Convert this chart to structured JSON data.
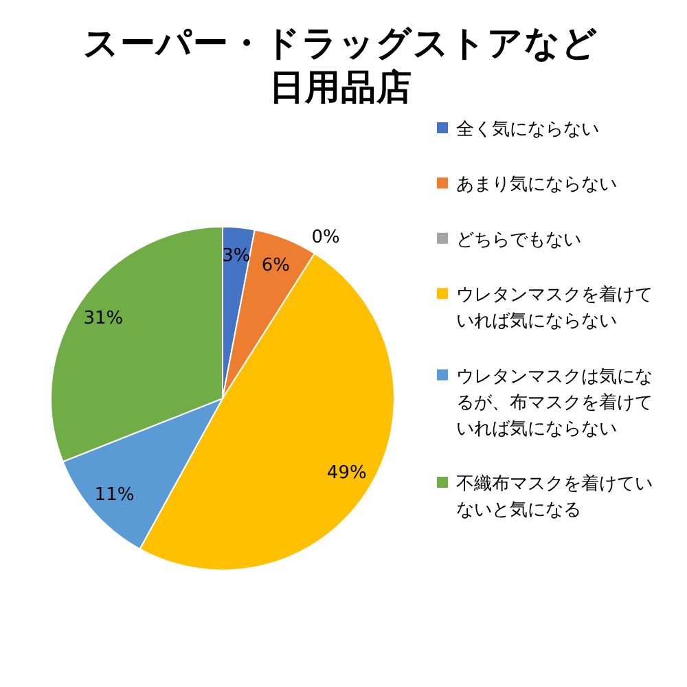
{
  "chart_data": {
    "type": "pie",
    "title": "スーパー・ドラッグストアなど日用品店",
    "categories": [
      "全く気にならない",
      "あまり気にならない",
      "どちらでもない",
      "ウレタンマスクを着けていれば気にならない",
      "ウレタンマスクは気になるが、布マスクを着けていれば気にならない",
      "不織布マスクを着けていないと気になる"
    ],
    "values": [
      3,
      6,
      0,
      49,
      11,
      31
    ],
    "colors": [
      "#4472c4",
      "#ed7d31",
      "#a5a5a5",
      "#ffc000",
      "#5b9bd5",
      "#70ad47"
    ],
    "value_labels": [
      "3%",
      "6%",
      "0%",
      "49%",
      "11%",
      "31%"
    ],
    "legend": "right"
  }
}
